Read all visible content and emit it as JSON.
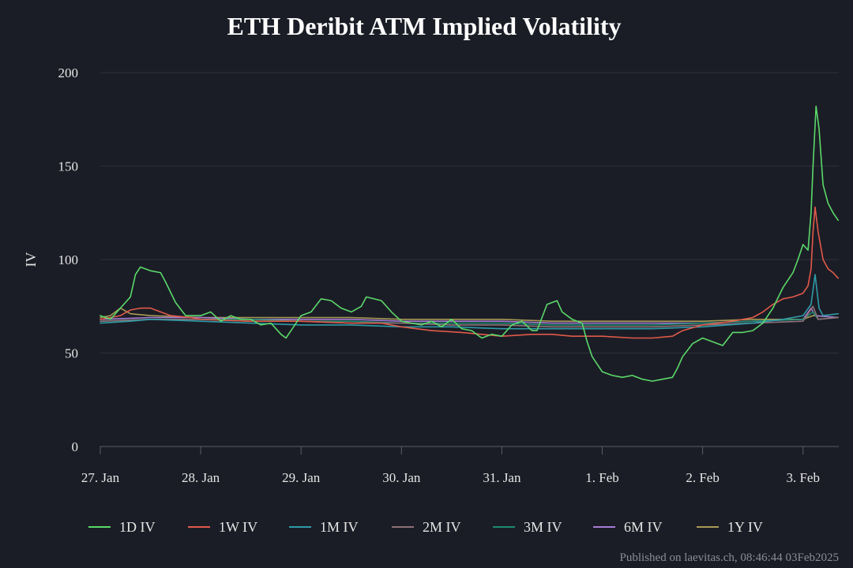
{
  "chart_data": {
    "type": "line",
    "title": "ETH Deribit ATM Implied Volatility",
    "xlabel": "",
    "ylabel": "IV",
    "ylim": [
      0,
      200
    ],
    "yticks": [
      0,
      50,
      100,
      150,
      200
    ],
    "xlim": [
      0,
      7.35
    ],
    "xticks": [
      {
        "pos": 0,
        "label": "27. Jan"
      },
      {
        "pos": 1,
        "label": "28. Jan"
      },
      {
        "pos": 2,
        "label": "29. Jan"
      },
      {
        "pos": 3,
        "label": "30. Jan"
      },
      {
        "pos": 4,
        "label": "31. Jan"
      },
      {
        "pos": 5,
        "label": "1. Feb"
      },
      {
        "pos": 6,
        "label": "2. Feb"
      },
      {
        "pos": 7,
        "label": "3. Feb"
      }
    ],
    "grid": true,
    "legend": "bottom",
    "series": [
      {
        "name": "1D IV",
        "color": "#5bd96a",
        "points": [
          [
            0,
            70
          ],
          [
            0.1,
            68
          ],
          [
            0.2,
            74
          ],
          [
            0.3,
            80
          ],
          [
            0.35,
            92
          ],
          [
            0.4,
            96
          ],
          [
            0.5,
            94
          ],
          [
            0.6,
            93
          ],
          [
            0.65,
            88
          ],
          [
            0.75,
            77
          ],
          [
            0.85,
            70
          ],
          [
            1.0,
            70
          ],
          [
            1.1,
            72
          ],
          [
            1.2,
            67
          ],
          [
            1.3,
            70
          ],
          [
            1.4,
            68
          ],
          [
            1.5,
            68
          ],
          [
            1.6,
            65
          ],
          [
            1.7,
            66
          ],
          [
            1.75,
            63
          ],
          [
            1.8,
            60
          ],
          [
            1.85,
            58
          ],
          [
            1.9,
            62
          ],
          [
            2.0,
            70
          ],
          [
            2.1,
            72
          ],
          [
            2.2,
            79
          ],
          [
            2.3,
            78
          ],
          [
            2.4,
            74
          ],
          [
            2.5,
            72
          ],
          [
            2.6,
            75
          ],
          [
            2.65,
            80
          ],
          [
            2.8,
            78
          ],
          [
            2.9,
            72
          ],
          [
            3.0,
            67
          ],
          [
            3.1,
            66
          ],
          [
            3.2,
            65
          ],
          [
            3.3,
            67
          ],
          [
            3.4,
            64
          ],
          [
            3.5,
            68
          ],
          [
            3.6,
            63
          ],
          [
            3.7,
            62
          ],
          [
            3.8,
            58
          ],
          [
            3.9,
            60
          ],
          [
            4.0,
            59
          ],
          [
            4.1,
            65
          ],
          [
            4.2,
            67
          ],
          [
            4.3,
            62
          ],
          [
            4.35,
            62
          ],
          [
            4.45,
            76
          ],
          [
            4.55,
            78
          ],
          [
            4.6,
            72
          ],
          [
            4.7,
            68
          ],
          [
            4.8,
            66
          ],
          [
            4.85,
            56
          ],
          [
            4.9,
            48
          ],
          [
            5.0,
            40
          ],
          [
            5.1,
            38
          ],
          [
            5.2,
            37
          ],
          [
            5.3,
            38
          ],
          [
            5.4,
            36
          ],
          [
            5.5,
            35
          ],
          [
            5.6,
            36
          ],
          [
            5.7,
            37
          ],
          [
            5.75,
            42
          ],
          [
            5.8,
            48
          ],
          [
            5.9,
            55
          ],
          [
            6.0,
            58
          ],
          [
            6.1,
            56
          ],
          [
            6.2,
            54
          ],
          [
            6.3,
            61
          ],
          [
            6.4,
            61
          ],
          [
            6.5,
            62
          ],
          [
            6.6,
            66
          ],
          [
            6.7,
            74
          ],
          [
            6.8,
            85
          ],
          [
            6.9,
            93
          ],
          [
            6.95,
            100
          ],
          [
            7.0,
            108
          ],
          [
            7.05,
            105
          ],
          [
            7.08,
            125
          ],
          [
            7.1,
            150
          ],
          [
            7.13,
            182
          ],
          [
            7.16,
            170
          ],
          [
            7.2,
            140
          ],
          [
            7.25,
            130
          ],
          [
            7.3,
            125
          ],
          [
            7.35,
            121
          ]
        ]
      },
      {
        "name": "1W IV",
        "color": "#e05a4a",
        "points": [
          [
            0,
            68
          ],
          [
            0.2,
            70
          ],
          [
            0.3,
            73
          ],
          [
            0.4,
            74
          ],
          [
            0.5,
            74
          ],
          [
            0.6,
            72
          ],
          [
            0.7,
            70
          ],
          [
            0.9,
            69
          ],
          [
            1.0,
            68
          ],
          [
            1.5,
            67
          ],
          [
            2.0,
            67
          ],
          [
            2.5,
            66
          ],
          [
            2.8,
            66
          ],
          [
            3.0,
            64
          ],
          [
            3.3,
            62
          ],
          [
            3.6,
            61
          ],
          [
            3.8,
            60
          ],
          [
            4.0,
            59
          ],
          [
            4.3,
            60
          ],
          [
            4.5,
            60
          ],
          [
            4.7,
            59
          ],
          [
            5.0,
            59
          ],
          [
            5.3,
            58
          ],
          [
            5.5,
            58
          ],
          [
            5.7,
            59
          ],
          [
            5.8,
            62
          ],
          [
            6.0,
            65
          ],
          [
            6.3,
            67
          ],
          [
            6.5,
            69
          ],
          [
            6.6,
            72
          ],
          [
            6.7,
            76
          ],
          [
            6.8,
            79
          ],
          [
            6.9,
            80
          ],
          [
            7.0,
            82
          ],
          [
            7.05,
            86
          ],
          [
            7.08,
            95
          ],
          [
            7.1,
            115
          ],
          [
            7.12,
            128
          ],
          [
            7.15,
            115
          ],
          [
            7.2,
            100
          ],
          [
            7.25,
            95
          ],
          [
            7.3,
            93
          ],
          [
            7.35,
            90
          ]
        ]
      },
      {
        "name": "1M IV",
        "color": "#2f9aa6",
        "points": [
          [
            0,
            66
          ],
          [
            0.3,
            67
          ],
          [
            0.5,
            68
          ],
          [
            1.0,
            67
          ],
          [
            1.5,
            66
          ],
          [
            2.0,
            65
          ],
          [
            2.5,
            65
          ],
          [
            3.0,
            64
          ],
          [
            3.5,
            64
          ],
          [
            4.0,
            63
          ],
          [
            4.5,
            63
          ],
          [
            5.0,
            63
          ],
          [
            5.5,
            63
          ],
          [
            6.0,
            64
          ],
          [
            6.5,
            66
          ],
          [
            6.8,
            68
          ],
          [
            7.0,
            70
          ],
          [
            7.08,
            76
          ],
          [
            7.12,
            92
          ],
          [
            7.16,
            74
          ],
          [
            7.2,
            70
          ],
          [
            7.35,
            71
          ]
        ]
      },
      {
        "name": "2M IV",
        "color": "#8e7078",
        "points": [
          [
            0,
            67
          ],
          [
            0.5,
            68
          ],
          [
            1.0,
            68
          ],
          [
            1.5,
            67
          ],
          [
            2.0,
            67
          ],
          [
            2.5,
            66
          ],
          [
            3.0,
            66
          ],
          [
            3.5,
            65
          ],
          [
            4.0,
            65
          ],
          [
            4.5,
            64
          ],
          [
            5.0,
            64
          ],
          [
            5.5,
            64
          ],
          [
            6.0,
            65
          ],
          [
            6.5,
            66
          ],
          [
            7.0,
            67
          ],
          [
            7.1,
            75
          ],
          [
            7.15,
            68
          ],
          [
            7.35,
            69
          ]
        ]
      },
      {
        "name": "3M IV",
        "color": "#1e8a70",
        "points": [
          [
            0,
            67
          ],
          [
            0.5,
            68
          ],
          [
            1.0,
            68
          ],
          [
            1.5,
            68
          ],
          [
            2.0,
            67
          ],
          [
            2.5,
            67
          ],
          [
            3.0,
            66
          ],
          [
            3.5,
            66
          ],
          [
            4.0,
            66
          ],
          [
            4.5,
            65
          ],
          [
            5.0,
            65
          ],
          [
            5.5,
            65
          ],
          [
            6.0,
            66
          ],
          [
            6.5,
            67
          ],
          [
            7.0,
            68
          ],
          [
            7.1,
            72
          ],
          [
            7.15,
            68
          ],
          [
            7.35,
            69
          ]
        ]
      },
      {
        "name": "6M IV",
        "color": "#a77cd6",
        "points": [
          [
            0,
            68
          ],
          [
            0.5,
            69
          ],
          [
            1.0,
            69
          ],
          [
            1.5,
            68
          ],
          [
            2.0,
            68
          ],
          [
            2.5,
            68
          ],
          [
            3.0,
            67
          ],
          [
            3.5,
            67
          ],
          [
            4.0,
            67
          ],
          [
            4.5,
            66
          ],
          [
            5.0,
            66
          ],
          [
            5.5,
            66
          ],
          [
            6.0,
            66
          ],
          [
            6.5,
            67
          ],
          [
            7.0,
            68
          ],
          [
            7.08,
            74
          ],
          [
            7.12,
            70
          ],
          [
            7.35,
            69
          ]
        ]
      },
      {
        "name": "1Y IV",
        "color": "#a89a55",
        "points": [
          [
            0,
            69
          ],
          [
            0.1,
            70
          ],
          [
            0.2,
            74
          ],
          [
            0.3,
            71
          ],
          [
            0.5,
            70
          ],
          [
            1.0,
            69
          ],
          [
            1.5,
            69
          ],
          [
            2.0,
            69
          ],
          [
            2.5,
            69
          ],
          [
            3.0,
            68
          ],
          [
            3.5,
            68
          ],
          [
            4.0,
            68
          ],
          [
            4.5,
            67
          ],
          [
            5.0,
            67
          ],
          [
            5.5,
            67
          ],
          [
            6.0,
            67
          ],
          [
            6.5,
            68
          ],
          [
            7.0,
            68
          ],
          [
            7.1,
            70
          ],
          [
            7.35,
            69
          ]
        ]
      }
    ]
  },
  "footer": {
    "published": "Published on laevitas.ch, 08:46:44 03Feb2025"
  }
}
